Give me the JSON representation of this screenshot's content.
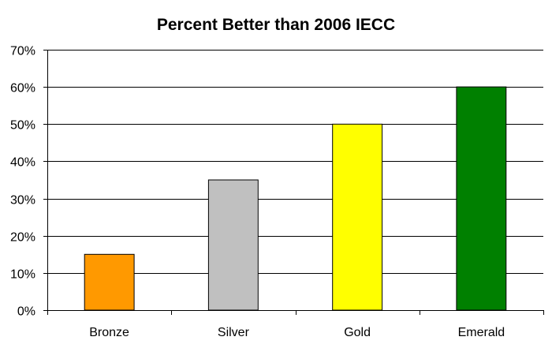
{
  "chart_data": {
    "type": "bar",
    "title": "Percent Better than 2006 IECC",
    "xlabel": "",
    "ylabel": "",
    "categories": [
      "Bronze",
      "Silver",
      "Gold",
      "Emerald"
    ],
    "values": [
      15,
      35,
      50,
      60
    ],
    "bar_colors": [
      "#FF9900",
      "#C0C0C0",
      "#FFFF00",
      "#008000"
    ],
    "ylim": [
      0,
      70
    ],
    "y_ticks": [
      0,
      10,
      20,
      30,
      40,
      50,
      60,
      70
    ],
    "y_tick_labels": [
      "0%",
      "10%",
      "20%",
      "30%",
      "40%",
      "50%",
      "60%",
      "70%"
    ],
    "grid": true,
    "legend": "none"
  }
}
